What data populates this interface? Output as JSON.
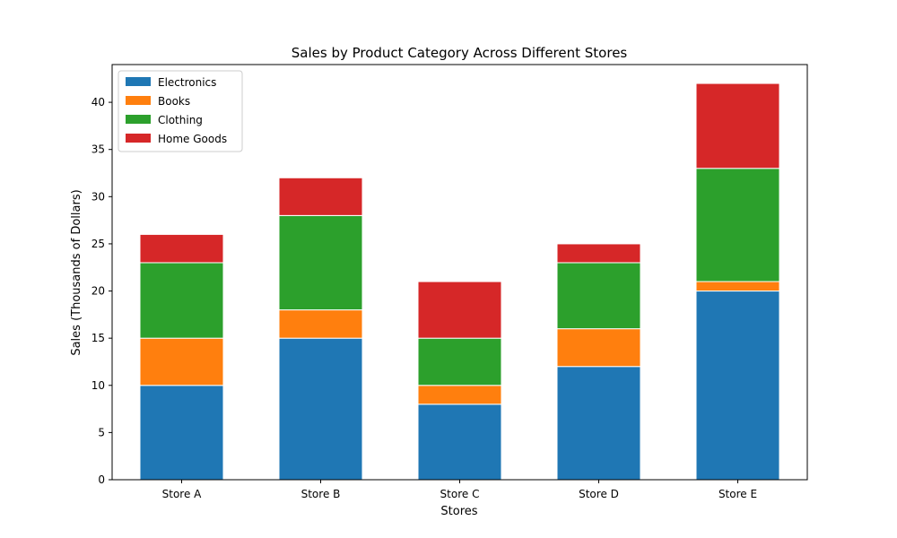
{
  "chart_data": {
    "type": "bar",
    "stacked": true,
    "title": "Sales by Product Category Across Different Stores",
    "xlabel": "Stores",
    "ylabel": "Sales (Thousands of Dollars)",
    "ylim": [
      0,
      44
    ],
    "yticks": [
      0,
      5,
      10,
      15,
      20,
      25,
      30,
      35,
      40
    ],
    "categories": [
      "Store A",
      "Store B",
      "Store C",
      "Store D",
      "Store E"
    ],
    "series": [
      {
        "name": "Electronics",
        "color": "#1f77b4",
        "values": [
          10,
          15,
          8,
          12,
          20
        ]
      },
      {
        "name": "Books",
        "color": "#ff7f0e",
        "values": [
          5,
          3,
          2,
          4,
          1
        ]
      },
      {
        "name": "Clothing",
        "color": "#2ca02c",
        "values": [
          8,
          10,
          5,
          7,
          12
        ]
      },
      {
        "name": "Home Goods",
        "color": "#d62728",
        "values": [
          3,
          4,
          6,
          2,
          9
        ]
      }
    ],
    "grid": false,
    "legend_position": "top-left"
  }
}
